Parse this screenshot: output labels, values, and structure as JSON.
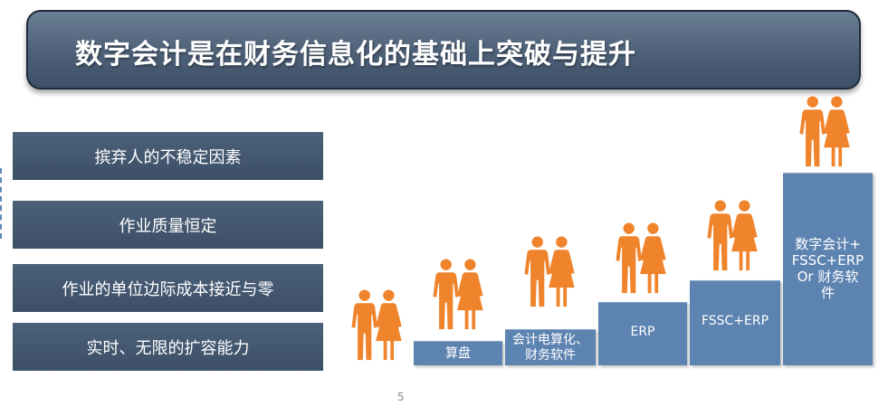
{
  "title": "数字会计是在财务信息化的基础上突破与提升",
  "benefits": [
    "摈弃人的不稳定因素",
    "作业质量恒定",
    "作业的单位边际成本接近与零",
    "实时、无限的扩容能力"
  ],
  "steps": [
    "算盘",
    "会计电算化、\n财务软件",
    "ERP",
    "FSSC+ERP",
    "数字会计+\nFSSC+ERP\nOr 财务软\n件"
  ],
  "page_number": "5",
  "colors": {
    "title_banner": "#4d6077",
    "benefit_box": "#44576f",
    "step_block": "#5d83b1",
    "person_icon": "#f0842c"
  },
  "icons": [
    "person-pair-icon"
  ]
}
